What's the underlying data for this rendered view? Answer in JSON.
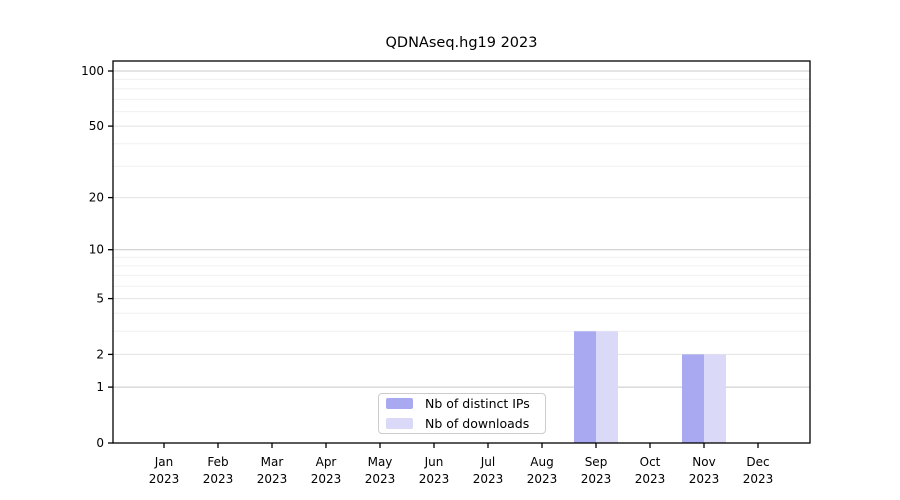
{
  "chart_data": {
    "type": "bar",
    "title": "QDNAseq.hg19 2023",
    "categories": [
      {
        "month": "Jan",
        "year": "2023"
      },
      {
        "month": "Feb",
        "year": "2023"
      },
      {
        "month": "Mar",
        "year": "2023"
      },
      {
        "month": "Apr",
        "year": "2023"
      },
      {
        "month": "May",
        "year": "2023"
      },
      {
        "month": "Jun",
        "year": "2023"
      },
      {
        "month": "Jul",
        "year": "2023"
      },
      {
        "month": "Aug",
        "year": "2023"
      },
      {
        "month": "Sep",
        "year": "2023"
      },
      {
        "month": "Oct",
        "year": "2023"
      },
      {
        "month": "Nov",
        "year": "2023"
      },
      {
        "month": "Dec",
        "year": "2023"
      }
    ],
    "series": [
      {
        "name": "Nb of distinct IPs",
        "color": "#a9a9f2",
        "values": [
          0,
          0,
          0,
          0,
          0,
          0,
          0,
          0,
          3,
          0,
          2,
          0
        ]
      },
      {
        "name": "Nb of downloads",
        "color": "#dadaf8",
        "values": [
          0,
          0,
          0,
          0,
          0,
          0,
          0,
          0,
          3,
          0,
          2,
          0
        ]
      }
    ],
    "y_axis": {
      "scale": "log10(1+y)",
      "tick_values": [
        0,
        1,
        2,
        5,
        10,
        20,
        50,
        100
      ],
      "tick_labels": [
        "0",
        "1",
        "2",
        "5",
        "10",
        "20",
        "50",
        "100"
      ],
      "gridline_values": [
        1,
        2,
        3,
        4,
        5,
        6,
        7,
        8,
        9,
        10,
        20,
        30,
        40,
        50,
        60,
        70,
        80,
        90,
        100
      ],
      "ylim": [
        0,
        114
      ]
    },
    "legend_position": "lower center inside",
    "grid": "horizontal",
    "colors": {
      "background": "#ffffff",
      "spine": "#000000",
      "grid_decade": "#c8c8c8",
      "grid_labeled": "#e3e3e3",
      "grid_minor": "#f0f0f0"
    }
  }
}
